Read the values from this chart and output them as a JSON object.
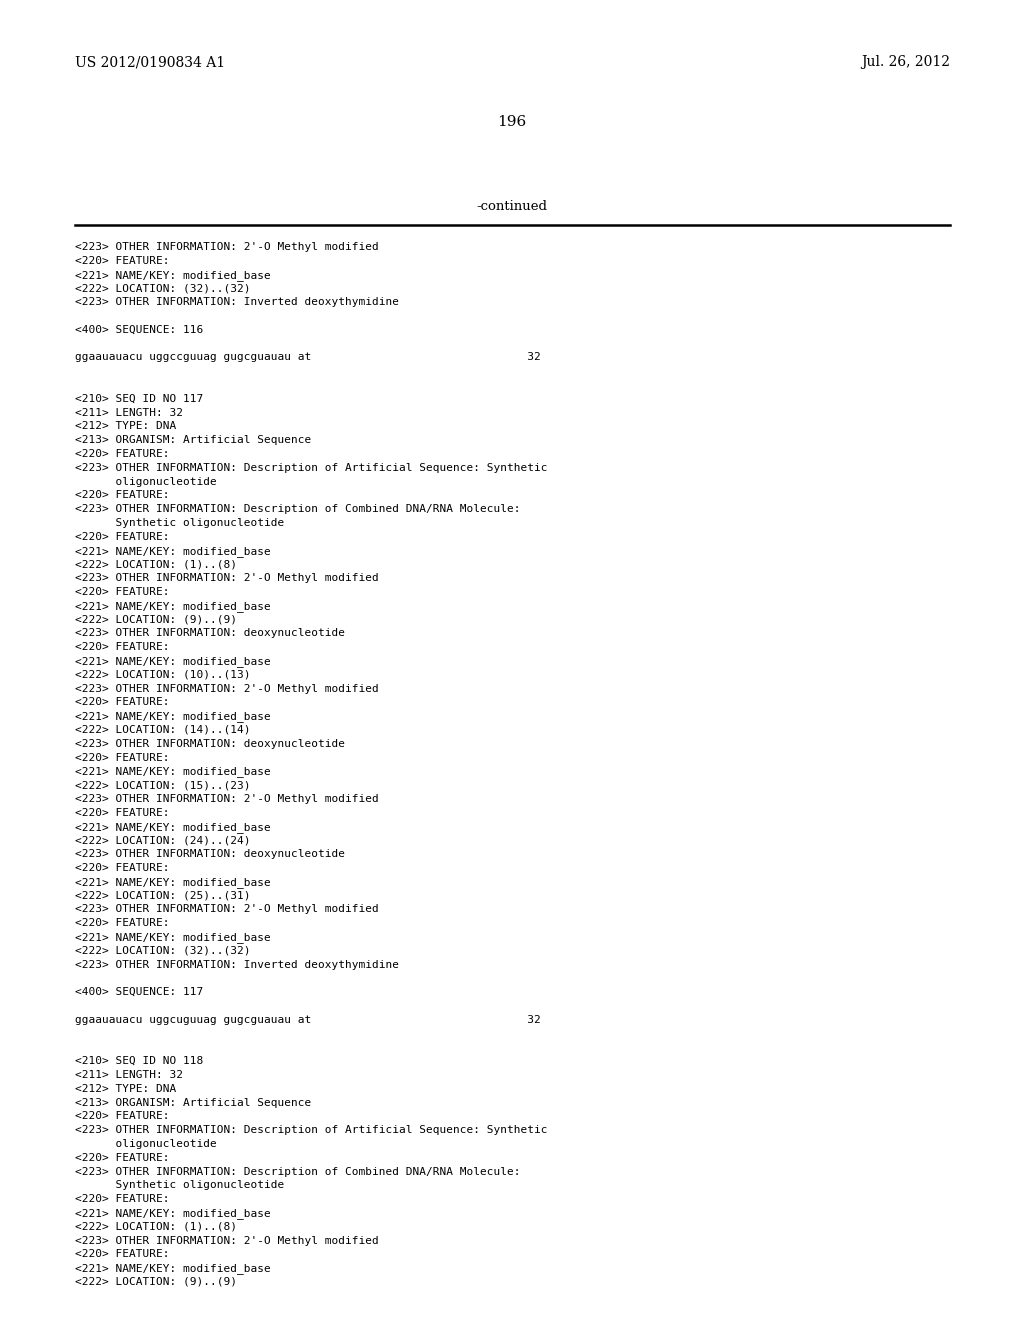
{
  "header_left": "US 2012/0190834 A1",
  "header_right": "Jul. 26, 2012",
  "page_number": "196",
  "continued_label": "-continued",
  "background_color": "#ffffff",
  "text_color": "#000000",
  "mono_font_size": 8.0,
  "header_font_size": 10.0,
  "page_num_font_size": 11.0,
  "continued_font_size": 9.5,
  "lines": [
    "<223> OTHER INFORMATION: 2'-O Methyl modified",
    "<220> FEATURE:",
    "<221> NAME/KEY: modified_base",
    "<222> LOCATION: (32)..(32)",
    "<223> OTHER INFORMATION: Inverted deoxythymidine",
    "",
    "<400> SEQUENCE: 116",
    "",
    "ggaauauacu uggccguuag gugcguauau at                                32",
    "",
    "",
    "<210> SEQ ID NO 117",
    "<211> LENGTH: 32",
    "<212> TYPE: DNA",
    "<213> ORGANISM: Artificial Sequence",
    "<220> FEATURE:",
    "<223> OTHER INFORMATION: Description of Artificial Sequence: Synthetic",
    "      oligonucleotide",
    "<220> FEATURE:",
    "<223> OTHER INFORMATION: Description of Combined DNA/RNA Molecule:",
    "      Synthetic oligonucleotide",
    "<220> FEATURE:",
    "<221> NAME/KEY: modified_base",
    "<222> LOCATION: (1)..(8)",
    "<223> OTHER INFORMATION: 2'-O Methyl modified",
    "<220> FEATURE:",
    "<221> NAME/KEY: modified_base",
    "<222> LOCATION: (9)..(9)",
    "<223> OTHER INFORMATION: deoxynucleotide",
    "<220> FEATURE:",
    "<221> NAME/KEY: modified_base",
    "<222> LOCATION: (10)..(13)",
    "<223> OTHER INFORMATION: 2'-O Methyl modified",
    "<220> FEATURE:",
    "<221> NAME/KEY: modified_base",
    "<222> LOCATION: (14)..(14)",
    "<223> OTHER INFORMATION: deoxynucleotide",
    "<220> FEATURE:",
    "<221> NAME/KEY: modified_base",
    "<222> LOCATION: (15)..(23)",
    "<223> OTHER INFORMATION: 2'-O Methyl modified",
    "<220> FEATURE:",
    "<221> NAME/KEY: modified_base",
    "<222> LOCATION: (24)..(24)",
    "<223> OTHER INFORMATION: deoxynucleotide",
    "<220> FEATURE:",
    "<221> NAME/KEY: modified_base",
    "<222> LOCATION: (25)..(31)",
    "<223> OTHER INFORMATION: 2'-O Methyl modified",
    "<220> FEATURE:",
    "<221> NAME/KEY: modified_base",
    "<222> LOCATION: (32)..(32)",
    "<223> OTHER INFORMATION: Inverted deoxythymidine",
    "",
    "<400> SEQUENCE: 117",
    "",
    "ggaauauacu uggcuguuag gugcguauau at                                32",
    "",
    "",
    "<210> SEQ ID NO 118",
    "<211> LENGTH: 32",
    "<212> TYPE: DNA",
    "<213> ORGANISM: Artificial Sequence",
    "<220> FEATURE:",
    "<223> OTHER INFORMATION: Description of Artificial Sequence: Synthetic",
    "      oligonucleotide",
    "<220> FEATURE:",
    "<223> OTHER INFORMATION: Description of Combined DNA/RNA Molecule:",
    "      Synthetic oligonucleotide",
    "<220> FEATURE:",
    "<221> NAME/KEY: modified_base",
    "<222> LOCATION: (1)..(8)",
    "<223> OTHER INFORMATION: 2'-O Methyl modified",
    "<220> FEATURE:",
    "<221> NAME/KEY: modified_base",
    "<222> LOCATION: (9)..(9)"
  ]
}
